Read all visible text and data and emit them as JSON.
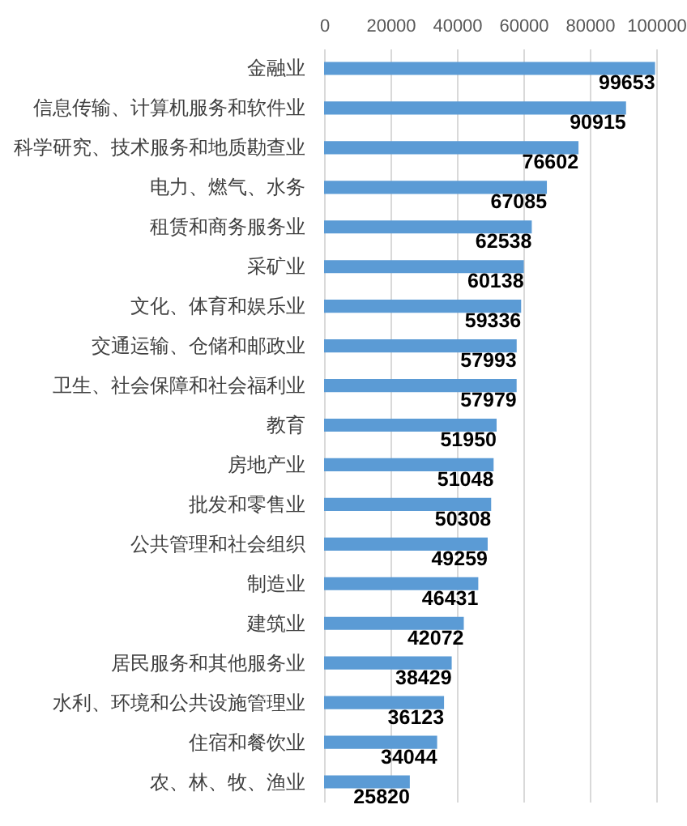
{
  "chart_data": {
    "type": "bar",
    "orientation": "horizontal",
    "categories": [
      "金融业",
      "信息传输、计算机服务和软件业",
      "科学研究、技术服务和地质勘查业",
      "电力、燃气、水务",
      "租赁和商务服务业",
      "采矿业",
      "文化、体育和娱乐业",
      "交通运输、仓储和邮政业",
      "卫生、社会保障和社会福利业",
      "教育",
      "房地产业",
      "批发和零售业",
      "公共管理和社会组织",
      "制造业",
      "建筑业",
      "居民服务和其他服务业",
      "水利、环境和公共设施管理业",
      "住宿和餐饮业",
      "农、林、牧、渔业"
    ],
    "values": [
      99653,
      90915,
      76602,
      67085,
      62538,
      60138,
      59336,
      57993,
      57979,
      51950,
      51048,
      50308,
      49259,
      46431,
      42072,
      38429,
      36123,
      34044,
      25820
    ],
    "color": "#5b9bd5",
    "xlim": [
      0,
      100000
    ],
    "xticks": [
      0,
      20000,
      40000,
      60000,
      80000,
      100000
    ],
    "grid": "x",
    "data_labels": true
  }
}
